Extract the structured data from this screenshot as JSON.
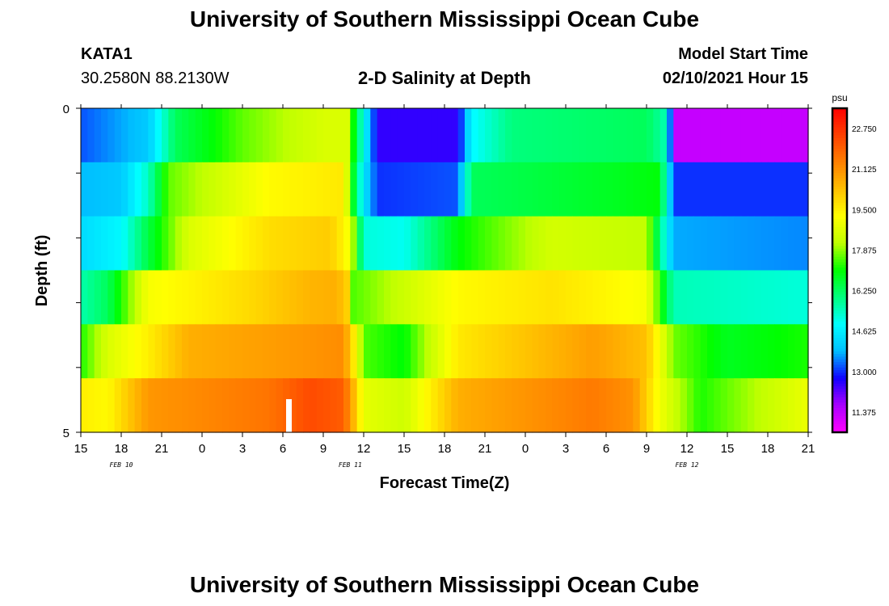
{
  "header": {
    "title": "University of Southern Mississippi Ocean Cube",
    "station": "KATA1",
    "coords": "30.2580N 88.2130W",
    "subtitle": "2-D Salinity at Depth",
    "start_label": "Model Start Time",
    "start_value": "02/10/2021 Hour 15",
    "footer_title": "University of Southern Mississippi Ocean Cube"
  },
  "chart_data": {
    "type": "heatmap",
    "title": "2-D Salinity at Depth",
    "xlabel": "Forecast Time(Z)",
    "ylabel": "Depth (ft)",
    "x_tick_labels": [
      "15",
      "18",
      "21",
      "0",
      "3",
      "6",
      "9",
      "12",
      "15",
      "18",
      "21",
      "0",
      "3",
      "6",
      "9",
      "12",
      "15",
      "18",
      "21"
    ],
    "date_labels": [
      "FEB 10",
      "FEB 11",
      "FEB 12"
    ],
    "y_tick_labels": [
      "0",
      "5"
    ],
    "ylim": [
      0,
      5
    ],
    "x_hours_range": [
      0,
      54
    ],
    "depth_rows": [
      0,
      1,
      2,
      3,
      4,
      5
    ],
    "colorbar": {
      "unit": "psu",
      "min": 10.5625,
      "max": 23.5625,
      "tick_labels": [
        "22.750",
        "21.125",
        "19.500",
        "17.875",
        "16.250",
        "14.625",
        "13.000",
        "11.375"
      ],
      "colors": [
        "#ff00ff",
        "#aa00ff",
        "#1000ff",
        "#00bfff",
        "#00ffff",
        "#00ff7f",
        "#00ff00",
        "#bfff00",
        "#ffff00",
        "#ffc000",
        "#ff8000",
        "#ff4000",
        "#ff0000"
      ]
    },
    "salinity_keypoints": [
      [
        [
          0,
          13.2
        ],
        [
          5,
          14.0
        ],
        [
          7,
          16.3
        ],
        [
          12,
          17.6
        ],
        [
          18,
          18.6
        ],
        [
          19.8,
          18.6
        ],
        [
          20.4,
          16.5
        ],
        [
          21,
          15.0
        ],
        [
          22,
          12.5
        ],
        [
          28,
          12.5
        ],
        [
          29,
          14.8
        ],
        [
          32,
          16.0
        ],
        [
          42,
          16.3
        ],
        [
          43.5,
          15.5
        ],
        [
          44,
          11.3
        ],
        [
          54,
          11.3
        ]
      ],
      [
        [
          0,
          13.8
        ],
        [
          3,
          14.0
        ],
        [
          5,
          15.4
        ],
        [
          6.5,
          17.6
        ],
        [
          14,
          19.3
        ],
        [
          19.5,
          19.6
        ],
        [
          20.3,
          16.5
        ],
        [
          21,
          14.5
        ],
        [
          22,
          13.0
        ],
        [
          28,
          13.2
        ],
        [
          29,
          16.3
        ],
        [
          40,
          16.8
        ],
        [
          43,
          17.0
        ],
        [
          44,
          13.0
        ],
        [
          54,
          13.0
        ]
      ],
      [
        [
          0,
          14.3
        ],
        [
          3,
          14.8
        ],
        [
          5,
          16.5
        ],
        [
          8,
          18.6
        ],
        [
          14,
          19.8
        ],
        [
          18.5,
          20.1
        ],
        [
          19.7,
          19.3
        ],
        [
          20.3,
          17.8
        ],
        [
          21,
          15.2
        ],
        [
          24,
          15.0
        ],
        [
          28,
          17.0
        ],
        [
          35,
          18.5
        ],
        [
          42,
          18.2
        ],
        [
          44,
          13.7
        ],
        [
          54,
          13.5
        ]
      ],
      [
        [
          0,
          15.6
        ],
        [
          2,
          16.3
        ],
        [
          5,
          19.1
        ],
        [
          12,
          19.8
        ],
        [
          17,
          20.5
        ],
        [
          19,
          20.6
        ],
        [
          19.8,
          20.0
        ],
        [
          20.2,
          17.5
        ],
        [
          22,
          17.9
        ],
        [
          28,
          19.3
        ],
        [
          35,
          19.7
        ],
        [
          42,
          19.1
        ],
        [
          44,
          15.5
        ],
        [
          54,
          15.2
        ]
      ],
      [
        [
          0,
          17.2
        ],
        [
          2,
          18.6
        ],
        [
          5,
          19.5
        ],
        [
          8,
          20.6
        ],
        [
          18,
          21.1
        ],
        [
          19.5,
          21.2
        ],
        [
          20.3,
          19.5
        ],
        [
          21,
          17.5
        ],
        [
          24,
          17.0
        ],
        [
          28,
          19.6
        ],
        [
          38,
          20.9
        ],
        [
          42,
          20.3
        ],
        [
          44,
          17.7
        ],
        [
          48,
          16.8
        ],
        [
          54,
          17.2
        ]
      ],
      [
        [
          0,
          19.5
        ],
        [
          2,
          19.3
        ],
        [
          5,
          21.0
        ],
        [
          14,
          21.6
        ],
        [
          17,
          22.3
        ],
        [
          19.5,
          22.0
        ],
        [
          20.2,
          20.6
        ],
        [
          21,
          18.8
        ],
        [
          24,
          18.4
        ],
        [
          28,
          20.6
        ],
        [
          38,
          21.5
        ],
        [
          41,
          21.1
        ],
        [
          43,
          19.0
        ],
        [
          46,
          17.2
        ],
        [
          51,
          18.3
        ],
        [
          54,
          18.9
        ]
      ]
    ]
  }
}
